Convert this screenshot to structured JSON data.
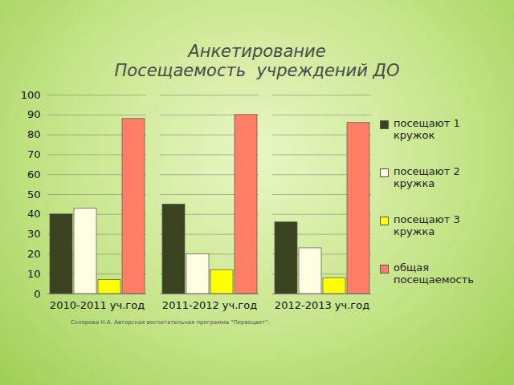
{
  "chart_data": {
    "type": "bar",
    "title": "Анкетирование\nПосещаемость  учреждений ДО",
    "caption": "Склярова Н.А. Авторская воспитательная программа \"Первоцвет\".",
    "categories": [
      "2010-2011 уч.год",
      "2011-2012 уч.год",
      "2012-2013 уч.год"
    ],
    "series": [
      {
        "name": "посещают 1 кружок",
        "color": "#3b4220",
        "values": [
          40,
          45,
          36
        ]
      },
      {
        "name": "посещают 2 кружка",
        "color": "#fffde2",
        "values": [
          43,
          20,
          23
        ]
      },
      {
        "name": "посещают 3 кружка",
        "color": "#ffff00",
        "values": [
          7,
          12,
          8
        ]
      },
      {
        "name": "общая посещаемость",
        "color": "#ff7f66",
        "values": [
          88,
          90,
          86
        ]
      }
    ],
    "ylim": [
      0,
      100
    ],
    "yticks": [
      0,
      10,
      20,
      30,
      40,
      50,
      60,
      70,
      80,
      90,
      100
    ],
    "grid": true,
    "legend": "right"
  }
}
